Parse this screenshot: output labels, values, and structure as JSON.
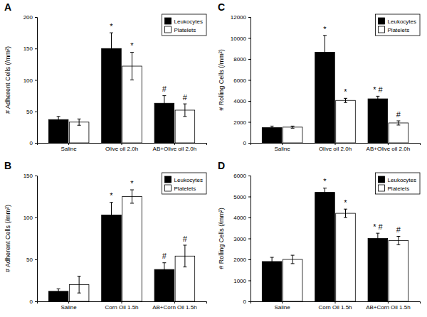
{
  "chart_data": [
    {
      "type": "bar",
      "title": "A",
      "ylabel": "# Adherent Cells (/mm²)",
      "categories": [
        "Saline",
        "Olive oil 2.0h",
        "AB+Olive oil 2.0h"
      ],
      "series": [
        {
          "name": "Leukocytes",
          "color": "#000000",
          "values": [
            37,
            150,
            63
          ],
          "errors": [
            5,
            25,
            12
          ],
          "annotations": [
            null,
            "*",
            "#"
          ]
        },
        {
          "name": "Platelets",
          "color": "#ffffff",
          "values": [
            33,
            122,
            52
          ],
          "errors": [
            5,
            22,
            10
          ],
          "annotations": [
            null,
            "*",
            "#"
          ]
        }
      ],
      "ylim": [
        0,
        200
      ],
      "yticks": [
        0,
        50,
        100,
        150,
        200
      ],
      "legend": "upper right",
      "grid": false
    },
    {
      "type": "bar",
      "title": "C",
      "ylabel": "# Rolling Cells (/mm²)",
      "categories": [
        "Saline",
        "Olive oil 2.0h",
        "AB+Olive oil 2.0h"
      ],
      "series": [
        {
          "name": "Leukocytes",
          "color": "#000000",
          "values": [
            1450,
            8650,
            4200
          ],
          "errors": [
            150,
            1600,
            250
          ],
          "annotations": [
            null,
            "*",
            "* #"
          ]
        },
        {
          "name": "Platelets",
          "color": "#ffffff",
          "values": [
            1500,
            4050,
            1900
          ],
          "errors": [
            100,
            200,
            200
          ],
          "annotations": [
            null,
            "*",
            "#"
          ]
        }
      ],
      "ylim": [
        0,
        12000
      ],
      "yticks": [
        0,
        2000,
        4000,
        6000,
        8000,
        10000,
        12000
      ],
      "legend": "upper right",
      "grid": false
    },
    {
      "type": "bar",
      "title": "B",
      "ylabel": "# Adherent Cells (/mm²)",
      "categories": [
        "Saline",
        "Corn Oil 1.5h",
        "AB+Corn Oil 1.5h"
      ],
      "series": [
        {
          "name": "Leukocytes",
          "color": "#000000",
          "values": [
            12,
            103,
            38
          ],
          "errors": [
            3,
            15,
            8
          ],
          "annotations": [
            null,
            "*",
            "#"
          ]
        },
        {
          "name": "Platelets",
          "color": "#ffffff",
          "values": [
            20,
            125,
            54
          ],
          "errors": [
            10,
            8,
            13
          ],
          "annotations": [
            null,
            "*",
            "#"
          ]
        }
      ],
      "ylim": [
        0,
        150
      ],
      "yticks": [
        0,
        50,
        100,
        150
      ],
      "legend": "upper right",
      "grid": false
    },
    {
      "type": "bar",
      "title": "D",
      "ylabel": "# Rolling Cells (/mm²)",
      "categories": [
        "Saline",
        "Corn Oil 1.5h",
        "AB+Corn Oil 1.5h"
      ],
      "series": [
        {
          "name": "Leukocytes",
          "color": "#000000",
          "values": [
            1900,
            5200,
            3000
          ],
          "errors": [
            200,
            200,
            250
          ],
          "annotations": [
            null,
            "*",
            "* #"
          ]
        },
        {
          "name": "Platelets",
          "color": "#ffffff",
          "values": [
            2000,
            4200,
            2900
          ],
          "errors": [
            200,
            200,
            200
          ],
          "annotations": [
            null,
            "*",
            "#"
          ]
        }
      ],
      "ylim": [
        0,
        6000
      ],
      "yticks": [
        0,
        1000,
        2000,
        3000,
        4000,
        5000,
        6000
      ],
      "legend": "upper right",
      "grid": false
    }
  ]
}
